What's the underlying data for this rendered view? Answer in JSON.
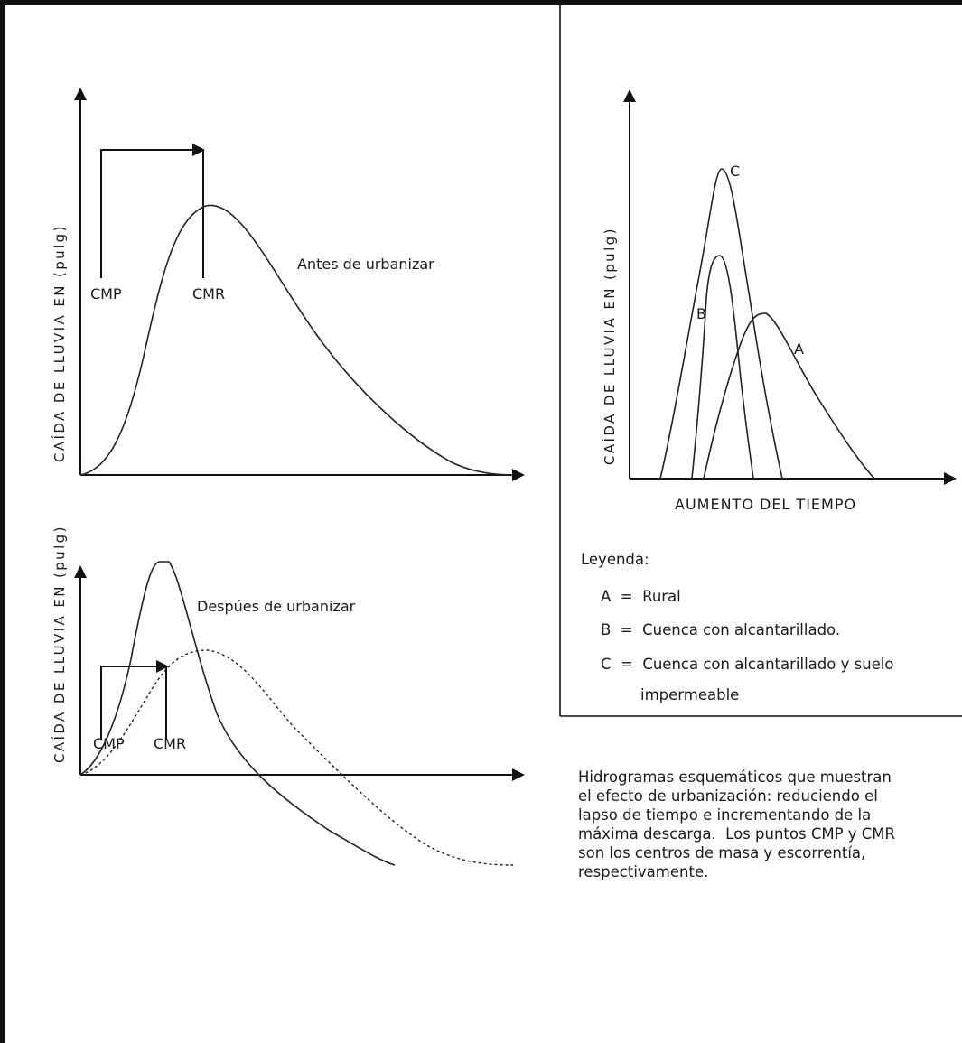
{
  "top_left": {
    "ylabel": "CAÍDA DE LLUVIA EN (pulg)",
    "title": "Antes de urbanizar",
    "cmp": "CMP",
    "cmr": "CMR"
  },
  "bottom_left": {
    "ylabel": "CAÍDA DE LLUVIA EN (pulg)",
    "title": "Despúes de urbanizar",
    "cmp": "CMP",
    "cmr": "CMR"
  },
  "top_right": {
    "ylabel": "CAÍDA DE LLUVIA EN (pulg)",
    "xlabel": "AUMENTO DEL TIEMPO",
    "curve_labels": {
      "a": "A",
      "b": "B",
      "c": "C"
    }
  },
  "legend": {
    "heading": "Leyenda:",
    "items": [
      "A  =  Rural",
      "B  =  Cuenca con alcantarillado.",
      "C  =  Cuenca con alcantarillado y suelo"
    ],
    "continuation": "impermeable"
  },
  "caption": [
    "Hidrogramas esquemáticos que muestran",
    "el efecto de urbanización: reduciendo el",
    "lapso de tiempo e incrementando de la",
    "máxima descarga.  Los puntos CMP y CMR",
    "son los centros de masa y escorrentía,",
    "respectivamente."
  ]
}
